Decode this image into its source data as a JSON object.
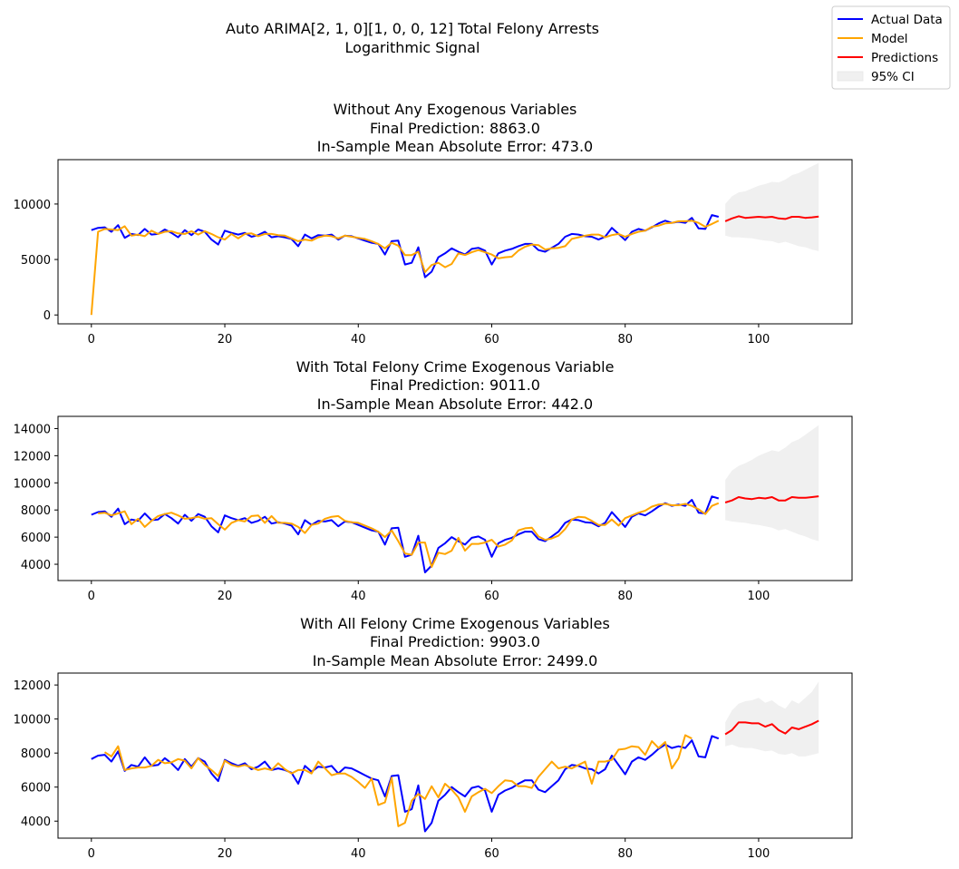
{
  "suptitle": {
    "line1": "Auto ARIMA[2, 1, 0][1, 0, 0, 12] Total Felony Arrests",
    "line2": "Logarithmic Signal"
  },
  "legend": {
    "placement": "top-right",
    "items": [
      {
        "label": "Actual Data",
        "color": "#0000ff",
        "kind": "line"
      },
      {
        "label": "Model",
        "color": "#ffa500",
        "kind": "line"
      },
      {
        "label": "Predictions",
        "color": "#ff0000",
        "kind": "line"
      },
      {
        "label": "95% CI",
        "color": "#f0f0f0",
        "kind": "patch"
      }
    ]
  },
  "actual": [
    7650,
    7850,
    7900,
    7500,
    8100,
    6950,
    7300,
    7200,
    7750,
    7250,
    7300,
    7700,
    7400,
    7000,
    7650,
    7200,
    7700,
    7500,
    6800,
    6350,
    7600,
    7400,
    7250,
    7400,
    7050,
    7200,
    7500,
    7000,
    7100,
    7000,
    6850,
    6200,
    7250,
    6900,
    7200,
    7150,
    7250,
    6800,
    7150,
    7100,
    6900,
    6700,
    6500,
    6400,
    5450,
    6650,
    6700,
    4550,
    4700,
    6100,
    3400,
    3900,
    5200,
    5550,
    6000,
    5700,
    5450,
    5950,
    6050,
    5800,
    4550,
    5550,
    5800,
    5950,
    6200,
    6400,
    6400,
    5850,
    5700,
    6050,
    6400,
    7050,
    7300,
    7250,
    7100,
    7050,
    6800,
    7050,
    7850,
    7300,
    6750,
    7500,
    7750,
    7600,
    7900,
    8250,
    8500,
    8300,
    8400,
    8300,
    8750,
    7800,
    7750,
    9000,
    8850
  ],
  "chart_data": [
    {
      "type": "line",
      "title": "Without Any Exogenous Variables\nFinal Prediction: 8863.0\nIn-Sample Mean Absolute Error: 473.0",
      "title_lines": [
        "Without Any Exogenous Variables",
        "Final Prediction: 8863.0",
        "In-Sample Mean Absolute Error: 473.0"
      ],
      "xlim": [
        -5,
        114
      ],
      "ylim": [
        -800,
        14000
      ],
      "xticks": [
        0,
        20,
        40,
        60,
        80,
        100
      ],
      "yticks": [
        0,
        5000,
        10000
      ],
      "grid": false,
      "series": [
        {
          "name": "Model",
          "color": "#ffa500",
          "x_start": 0,
          "values": [
            0,
            7500,
            7750,
            7700,
            7650,
            8000,
            7150,
            7250,
            7100,
            7600,
            7300,
            7500,
            7550,
            7350,
            7300,
            7550,
            7250,
            7550,
            7300,
            7000,
            6800,
            7300,
            6900,
            7300,
            7350,
            7100,
            7300,
            7300,
            7200,
            7150,
            6900,
            6650,
            6800,
            6700,
            7000,
            7150,
            7100,
            6900,
            7150,
            7050,
            6950,
            6850,
            6650,
            6400,
            6000,
            6500,
            6250,
            5400,
            5400,
            5700,
            3850,
            4500,
            4700,
            4300,
            4600,
            5550,
            5400,
            5650,
            5850,
            5650,
            5450,
            5100,
            5200,
            5250,
            5800,
            6150,
            6350,
            6300,
            5900,
            6000,
            6050,
            6200,
            6850,
            7000,
            7150,
            7250,
            7250,
            7000,
            7200,
            7300,
            7050,
            7300,
            7500,
            7600,
            7950,
            8050,
            8250,
            8300,
            8450,
            8450,
            8500,
            8300,
            7950,
            8200,
            8500
          ]
        },
        {
          "name": "Predictions",
          "color": "#ff0000",
          "x_start": 95,
          "values": [
            8450,
            8700,
            8900,
            8750,
            8800,
            8850,
            8800,
            8850,
            8700,
            8650,
            8850,
            8850,
            8750,
            8800,
            8863
          ],
          "ci_lower": [
            7150,
            7000,
            7000,
            6950,
            6900,
            6800,
            6700,
            6650,
            6450,
            6600,
            6400,
            6200,
            6100,
            5900,
            5750
          ],
          "ci_upper": [
            10000,
            10700,
            11050,
            11150,
            11400,
            11650,
            11800,
            12000,
            11950,
            12200,
            12600,
            12800,
            13100,
            13400,
            13700
          ]
        }
      ]
    },
    {
      "type": "line",
      "title": "With Total Felony Crime Exogenous Variable\nFinal Prediction: 9011.0\nIn-Sample Mean Absolute Error: 442.0",
      "title_lines": [
        "With Total Felony Crime Exogenous Variable",
        "Final Prediction: 9011.0",
        "In-Sample Mean Absolute Error: 442.0"
      ],
      "xlim": [
        -5,
        114
      ],
      "ylim": [
        2800,
        14900
      ],
      "xticks": [
        0,
        20,
        40,
        60,
        80,
        100
      ],
      "yticks": [
        4000,
        6000,
        8000,
        10000,
        12000,
        14000
      ],
      "grid": false,
      "series": [
        {
          "name": "Model",
          "color": "#ffa500",
          "x_start": 1,
          "values": [
            7750,
            7800,
            7600,
            7750,
            7900,
            6950,
            7350,
            6750,
            7200,
            7550,
            7700,
            7800,
            7600,
            7350,
            7400,
            7500,
            7350,
            7400,
            6950,
            6550,
            7050,
            7250,
            7150,
            7550,
            7600,
            7050,
            7550,
            7050,
            7050,
            7000,
            6750,
            6300,
            6900,
            7000,
            7350,
            7500,
            7550,
            7200,
            7100,
            7050,
            6850,
            6650,
            6400,
            6000,
            6500,
            5700,
            4800,
            4700,
            5600,
            5600,
            3800,
            4850,
            4750,
            5000,
            5950,
            5000,
            5500,
            5500,
            5600,
            5800,
            5300,
            5450,
            5750,
            6500,
            6650,
            6700,
            6050,
            5800,
            5900,
            6100,
            6600,
            7300,
            7500,
            7450,
            7200,
            6900,
            6900,
            7300,
            6850,
            7400,
            7600,
            7800,
            7950,
            8250,
            8400,
            8450,
            8350,
            8350,
            8450,
            8300,
            8050,
            7700,
            8300,
            8500
          ]
        },
        {
          "name": "Predictions",
          "color": "#ff0000",
          "x_start": 95,
          "values": [
            8550,
            8700,
            8950,
            8850,
            8800,
            8900,
            8850,
            8950,
            8700,
            8700,
            8950,
            8900,
            8900,
            8950,
            9011
          ],
          "ci_lower": [
            7250,
            7150,
            7100,
            7050,
            6950,
            6900,
            6800,
            6700,
            6500,
            6600,
            6400,
            6200,
            6050,
            5850,
            5700
          ],
          "ci_upper": [
            10200,
            10900,
            11250,
            11450,
            11700,
            12000,
            12200,
            12400,
            12300,
            12600,
            13000,
            13200,
            13550,
            13900,
            14250
          ]
        }
      ]
    },
    {
      "type": "line",
      "title": "With All Felony Crime Exogenous Variables\nFinal Prediction: 9903.0\nIn-Sample Mean Absolute Error: 2499.0",
      "title_lines": [
        "With All Felony Crime Exogenous Variables",
        "Final Prediction: 9903.0",
        "In-Sample Mean Absolute Error: 2499.0"
      ],
      "xlim": [
        -5,
        114
      ],
      "ylim": [
        3000,
        12700
      ],
      "xticks": [
        0,
        20,
        40,
        60,
        80,
        100
      ],
      "yticks": [
        4000,
        6000,
        8000,
        10000,
        12000
      ],
      "grid": false,
      "series": [
        {
          "name": "Model",
          "color": "#ffa500",
          "x_start": 2,
          "values": [
            8050,
            7800,
            8400,
            7000,
            7100,
            7150,
            7150,
            7250,
            7600,
            7400,
            7450,
            7650,
            7550,
            7100,
            7700,
            7300,
            7000,
            6650,
            7550,
            7300,
            7200,
            7300,
            7150,
            7000,
            7100,
            7000,
            7400,
            7050,
            6800,
            7000,
            7000,
            6800,
            7500,
            7100,
            6700,
            6800,
            6800,
            6600,
            6300,
            5950,
            6500,
            4950,
            5100,
            6550,
            3700,
            3900,
            5200,
            5600,
            5300,
            6050,
            5400,
            6200,
            5850,
            5400,
            4550,
            5450,
            5700,
            5900,
            5650,
            6050,
            6400,
            6350,
            6050,
            6050,
            5950,
            6600,
            7050,
            7500,
            7100,
            7200,
            7100,
            7300,
            7500,
            6200,
            7500,
            7500,
            7600,
            8200,
            8250,
            8400,
            8350,
            7900,
            8700,
            8300,
            8650,
            7100,
            7700,
            9050,
            8850
          ]
        },
        {
          "name": "Predictions",
          "color": "#ff0000",
          "x_start": 95,
          "values": [
            9100,
            9350,
            9800,
            9800,
            9750,
            9750,
            9550,
            9700,
            9350,
            9150,
            9500,
            9400,
            9550,
            9700,
            9903
          ],
          "ci_lower": [
            8400,
            8500,
            8350,
            8300,
            8300,
            8200,
            8100,
            8150,
            7950,
            7900,
            8000,
            7800,
            7800,
            7900,
            8000
          ],
          "ci_upper": [
            9800,
            10500,
            10900,
            11050,
            11100,
            11250,
            10950,
            11100,
            10800,
            10600,
            11100,
            10900,
            11250,
            11600,
            12200
          ]
        }
      ]
    }
  ]
}
